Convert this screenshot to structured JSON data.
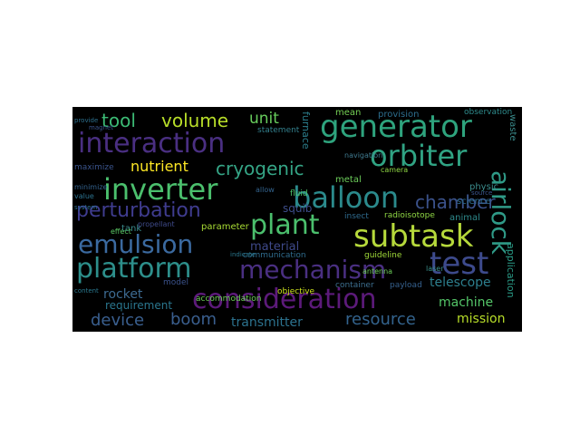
{
  "figure": {
    "background": "#000000",
    "words": [
      {
        "text": "consideration",
        "color": "#5c1a7a"
      },
      {
        "text": "interaction",
        "color": "#4a2f82"
      },
      {
        "text": "generator",
        "color": "#2ea37d"
      },
      {
        "text": "platform",
        "color": "#2d8f8b"
      },
      {
        "text": "mechanism",
        "color": "#4a2f82"
      },
      {
        "text": "subtask",
        "color": "#b6d93b"
      },
      {
        "text": "inverter",
        "color": "#4bbf6d"
      },
      {
        "text": "emulsion",
        "color": "#3b6aa0"
      },
      {
        "text": "orbiter",
        "color": "#30a383"
      },
      {
        "text": "balloon",
        "color": "#2b8a8c"
      },
      {
        "text": "plant",
        "color": "#4bbf6d"
      },
      {
        "text": "test",
        "color": "#3d4a8c"
      },
      {
        "text": "airlock",
        "color": "#2f9a87"
      },
      {
        "text": "perturbation",
        "color": "#3f3c8f"
      },
      {
        "text": "cryogenic",
        "color": "#35a586"
      },
      {
        "text": "chamber",
        "color": "#3b528b"
      },
      {
        "text": "nutrient",
        "color": "#fde725"
      },
      {
        "text": "volume",
        "color": "#b8de29"
      },
      {
        "text": "tool",
        "color": "#3cbb75"
      },
      {
        "text": "unit",
        "color": "#67cc5c"
      },
      {
        "text": "resource",
        "color": "#33638d"
      },
      {
        "text": "device",
        "color": "#3a5f8f"
      },
      {
        "text": "boom",
        "color": "#3a5f8f"
      },
      {
        "text": "transmitter",
        "color": "#2c728e"
      },
      {
        "text": "mission",
        "color": "#b8de29"
      },
      {
        "text": "machine",
        "color": "#54c568"
      },
      {
        "text": "telescope",
        "color": "#2d7f8e"
      },
      {
        "text": "material",
        "color": "#3e4989"
      },
      {
        "text": "rocket",
        "color": "#3d6b92"
      },
      {
        "text": "requirement",
        "color": "#2a768e"
      },
      {
        "text": "squib",
        "color": "#3d4d8a"
      },
      {
        "text": "insect",
        "color": "#2f6b8e"
      },
      {
        "text": "radioisotope",
        "color": "#8fd744"
      },
      {
        "text": "animal",
        "color": "#2e8a8c"
      },
      {
        "text": "science",
        "color": "#2e6d8e"
      },
      {
        "text": "laser",
        "color": "#3a8f8b"
      },
      {
        "text": "application",
        "color": "#2a9a86"
      },
      {
        "text": "furnace",
        "color": "#2c7f8e"
      },
      {
        "text": "waste",
        "color": "#3a8c8c"
      },
      {
        "text": "provision",
        "color": "#2d6e8e"
      },
      {
        "text": "mean",
        "color": "#75d054"
      },
      {
        "text": "observation",
        "color": "#2e8b8c"
      },
      {
        "text": "statement",
        "color": "#33808d"
      },
      {
        "text": "metal",
        "color": "#6ccd5a"
      },
      {
        "text": "camera",
        "color": "#8fd744"
      },
      {
        "text": "navigation",
        "color": "#3f7a8f"
      },
      {
        "text": "physic",
        "color": "#3b8c8c"
      },
      {
        "text": "communication",
        "color": "#2f6c8e"
      },
      {
        "text": "accommodation",
        "color": "#6cce58"
      },
      {
        "text": "payload",
        "color": "#35608d"
      },
      {
        "text": "container",
        "color": "#3d6f8f"
      },
      {
        "text": "guideline",
        "color": "#a0da39"
      },
      {
        "text": "antenna",
        "color": "#6cce58"
      },
      {
        "text": "fluid",
        "color": "#4ec36b"
      },
      {
        "text": "tank",
        "color": "#3b8a8c"
      },
      {
        "text": "objective",
        "color": "#cde11d"
      },
      {
        "text": "parameter",
        "color": "#a8db34"
      },
      {
        "text": "effect",
        "color": "#5ac864"
      },
      {
        "text": "maximize",
        "color": "#3a548c"
      },
      {
        "text": "minimize",
        "color": "#33628d"
      },
      {
        "text": "value",
        "color": "#2c728e"
      },
      {
        "text": "model",
        "color": "#3b528b"
      },
      {
        "text": "propellant",
        "color": "#3e4a89"
      },
      {
        "text": "provide",
        "color": "#2d708e"
      },
      {
        "text": "allow",
        "color": "#33638d"
      },
      {
        "text": "source",
        "color": "#3a548c"
      },
      {
        "text": "content",
        "color": "#2a788e"
      },
      {
        "text": "indicate",
        "color": "#2a788e"
      },
      {
        "text": "magnet",
        "color": "#3a548c"
      },
      {
        "text": "system",
        "color": "#2c6e8e"
      }
    ]
  }
}
